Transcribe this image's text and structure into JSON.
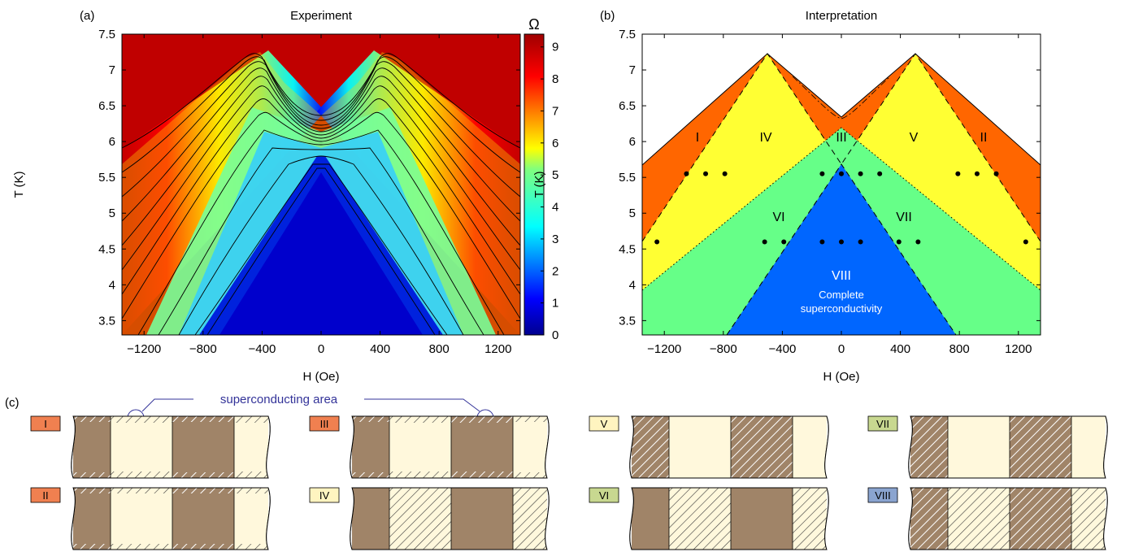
{
  "panel_a": {
    "letter": "(a)",
    "title": "Experiment",
    "xlabel": "H (Oe)",
    "ylabel": "T (K)",
    "xticks": [
      "-1200",
      "-800",
      "-400",
      "0",
      "400",
      "800",
      "1200"
    ],
    "yticks": [
      "3.5",
      "4",
      "4.5",
      "5",
      "5.5",
      "6",
      "6.5",
      "7",
      "7.5"
    ],
    "colorbar": {
      "unit": "Ω",
      "ticks": [
        "0",
        "1",
        "2",
        "3",
        "4",
        "5",
        "6",
        "7",
        "8",
        "9"
      ]
    }
  },
  "panel_b": {
    "letter": "(b)",
    "title": "Interpretation",
    "xlabel": "H (Oe)",
    "ylabel": "T (K)",
    "xticks": [
      "-1200",
      "-800",
      "-400",
      "0",
      "400",
      "800",
      "1200"
    ],
    "yticks": [
      "3.5",
      "4",
      "4.5",
      "5",
      "5.5",
      "6",
      "6.5",
      "7",
      "7.5"
    ],
    "regions": [
      "I",
      "II",
      "III",
      "IV",
      "V",
      "VI",
      "VII",
      "VIII"
    ],
    "region_viii_caption": [
      "Complete",
      "superconductivity"
    ],
    "colors": {
      "orange": "#ff6600",
      "yellow": "#ffff33",
      "green": "#66ff88",
      "blue": "#0066ff"
    }
  },
  "panel_c": {
    "letter": "(c)",
    "annotation": "superconducting area",
    "schematics": [
      "I",
      "II",
      "III",
      "IV",
      "V",
      "VI",
      "VII",
      "VIII"
    ],
    "colors": {
      "film": "#a08468",
      "sc": "#fff8dc",
      "hatch": "#ffffff"
    }
  },
  "chart_data": [
    {
      "type": "heatmap",
      "title": "Experiment",
      "xlabel": "H (Oe)",
      "ylabel": "T (K)",
      "xlim": [
        -1350,
        1350
      ],
      "ylim": [
        3.3,
        7.5
      ],
      "colorbar_range": [
        0,
        9.4
      ],
      "colorbar_label": "Ω",
      "ridge_peaks": [
        {
          "H": -480,
          "T": 7.25
        },
        {
          "H": 480,
          "T": 7.25
        }
      ],
      "central_saddle": {
        "H": 0,
        "T": 6.45
      }
    },
    {
      "type": "phase-diagram",
      "title": "Interpretation",
      "xlabel": "H (Oe)",
      "ylabel": "T (K)",
      "xlim": [
        -1350,
        1350
      ],
      "ylim": [
        3.3,
        7.5
      ],
      "dots": [
        {
          "H": -1050,
          "T": 5.55
        },
        {
          "H": -920,
          "T": 5.55
        },
        {
          "H": -790,
          "T": 5.55
        },
        {
          "H": -130,
          "T": 5.55
        },
        {
          "H": 0,
          "T": 5.55
        },
        {
          "H": 130,
          "T": 5.55
        },
        {
          "H": 260,
          "T": 5.55
        },
        {
          "H": 790,
          "T": 5.55
        },
        {
          "H": 920,
          "T": 5.55
        },
        {
          "H": 1050,
          "T": 5.55
        },
        {
          "H": -1250,
          "T": 4.6
        },
        {
          "H": -520,
          "T": 4.6
        },
        {
          "H": -390,
          "T": 4.6
        },
        {
          "H": -130,
          "T": 4.6
        },
        {
          "H": 0,
          "T": 4.6
        },
        {
          "H": 130,
          "T": 4.6
        },
        {
          "H": 390,
          "T": 4.6
        },
        {
          "H": 520,
          "T": 4.6
        },
        {
          "H": 1250,
          "T": 4.6
        }
      ]
    }
  ]
}
